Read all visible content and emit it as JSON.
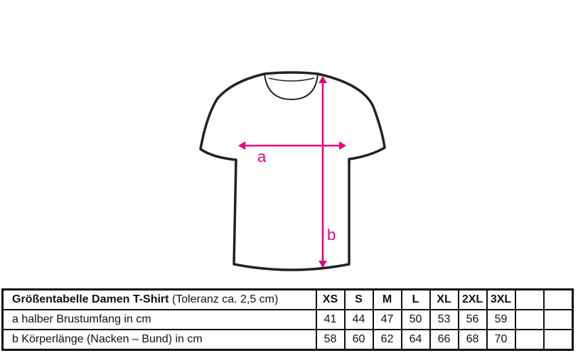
{
  "diagram": {
    "label_a": "a",
    "label_b": "b",
    "accent_color": "#e6007e"
  },
  "table": {
    "title_bold": "Größentabelle Damen T-Shirt",
    "title_note": "(Toleranz ca. 2,5 cm)",
    "sizes": [
      "XS",
      "S",
      "M",
      "L",
      "XL",
      "2XL",
      "3XL",
      "",
      ""
    ],
    "rows": [
      {
        "label": "a halber Brustumfang in cm",
        "values": [
          "41",
          "44",
          "47",
          "50",
          "53",
          "56",
          "59",
          "",
          ""
        ]
      },
      {
        "label": "b Körperlänge (Nacken – Bund) in cm",
        "values": [
          "58",
          "60",
          "62",
          "64",
          "66",
          "68",
          "70",
          "",
          ""
        ]
      }
    ]
  }
}
